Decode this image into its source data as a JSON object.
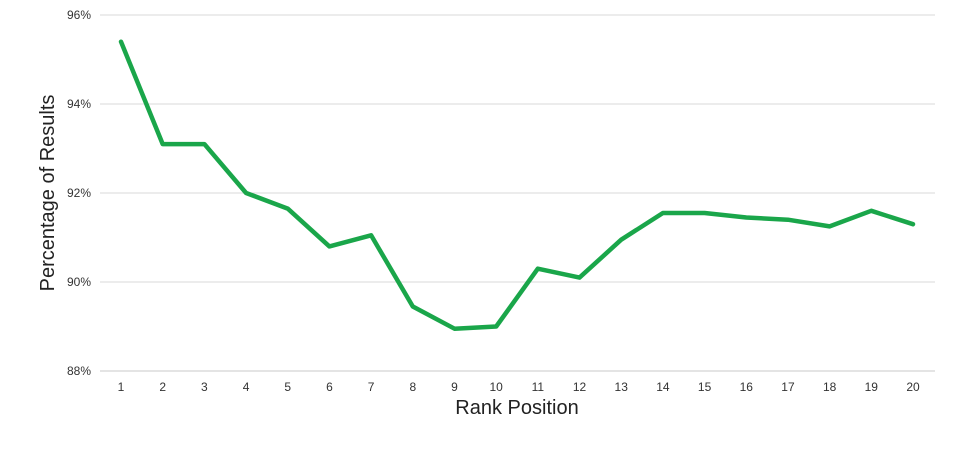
{
  "chart_data": {
    "type": "line",
    "title": "",
    "xlabel": "Rank Position",
    "ylabel": "Percentage of Results",
    "x": [
      1,
      2,
      3,
      4,
      5,
      6,
      7,
      8,
      9,
      10,
      11,
      12,
      13,
      14,
      15,
      16,
      17,
      18,
      19,
      20
    ],
    "ylim": [
      88,
      96
    ],
    "yticks": [
      88,
      90,
      92,
      94,
      96
    ],
    "ytick_labels": [
      "88%",
      "90%",
      "92%",
      "94%",
      "96%"
    ],
    "grid": true,
    "series": [
      {
        "color": "#1aa64a",
        "values": [
          95.4,
          93.1,
          93.1,
          92.0,
          91.65,
          90.8,
          91.05,
          89.45,
          88.95,
          89.0,
          90.3,
          90.1,
          90.95,
          91.55,
          91.55,
          91.45,
          91.4,
          91.25,
          91.6,
          91.3
        ]
      }
    ]
  }
}
